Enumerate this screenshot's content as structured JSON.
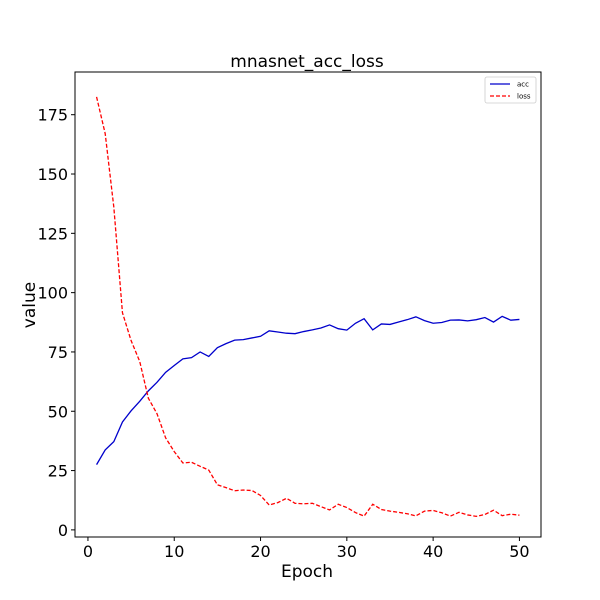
{
  "chart_data": {
    "type": "line",
    "title": "mnasnet_acc_loss",
    "xlabel": "Epoch",
    "ylabel": "value",
    "xlim": [
      -1.5,
      52.5
    ],
    "ylim": [
      -3,
      193
    ],
    "xticks": [
      0,
      10,
      20,
      30,
      40,
      50
    ],
    "yticks": [
      0,
      25,
      50,
      75,
      100,
      125,
      150,
      175
    ],
    "grid": false,
    "legend_position": "upper right",
    "x": [
      1,
      2,
      3,
      4,
      5,
      6,
      7,
      8,
      9,
      10,
      11,
      12,
      13,
      14,
      15,
      16,
      17,
      18,
      19,
      20,
      21,
      22,
      23,
      24,
      25,
      26,
      27,
      28,
      29,
      30,
      31,
      32,
      33,
      34,
      35,
      36,
      37,
      38,
      39,
      40,
      41,
      42,
      43,
      44,
      45,
      46,
      47,
      48,
      49,
      50
    ],
    "series": [
      {
        "name": "acc",
        "color": "#0000cc",
        "dash": "solid",
        "values": [
          27.5,
          33.7,
          37.2,
          45.5,
          50.2,
          54.2,
          58.6,
          62.2,
          66.4,
          69.3,
          72.1,
          72.6,
          75.0,
          73.1,
          76.8,
          78.5,
          80.0,
          80.2,
          80.9,
          81.6,
          83.9,
          83.4,
          82.9,
          82.7,
          83.6,
          84.3,
          85.1,
          86.4,
          84.8,
          84.2,
          87.1,
          89.0,
          84.3,
          86.8,
          86.6,
          87.6,
          88.6,
          89.8,
          88.2,
          87.1,
          87.4,
          88.4,
          88.5,
          88.1,
          88.6,
          89.5,
          87.6,
          90.0,
          88.4,
          88.7
        ]
      },
      {
        "name": "loss",
        "color": "#ff0000",
        "dash": "dashed",
        "values": [
          182.5,
          167.0,
          136.0,
          91.5,
          79.8,
          71.0,
          55.5,
          49.0,
          38.8,
          33.0,
          28.2,
          28.5,
          26.8,
          25.2,
          19.0,
          17.8,
          16.5,
          16.8,
          16.6,
          14.5,
          10.5,
          11.5,
          13.3,
          11.2,
          11.0,
          11.2,
          9.8,
          8.4,
          10.8,
          9.4,
          7.3,
          5.8,
          10.8,
          8.6,
          7.9,
          7.4,
          6.8,
          5.9,
          7.9,
          8.2,
          7.2,
          5.8,
          7.4,
          6.3,
          5.7,
          6.5,
          8.3,
          6.0,
          6.6,
          6.2
        ]
      }
    ]
  }
}
